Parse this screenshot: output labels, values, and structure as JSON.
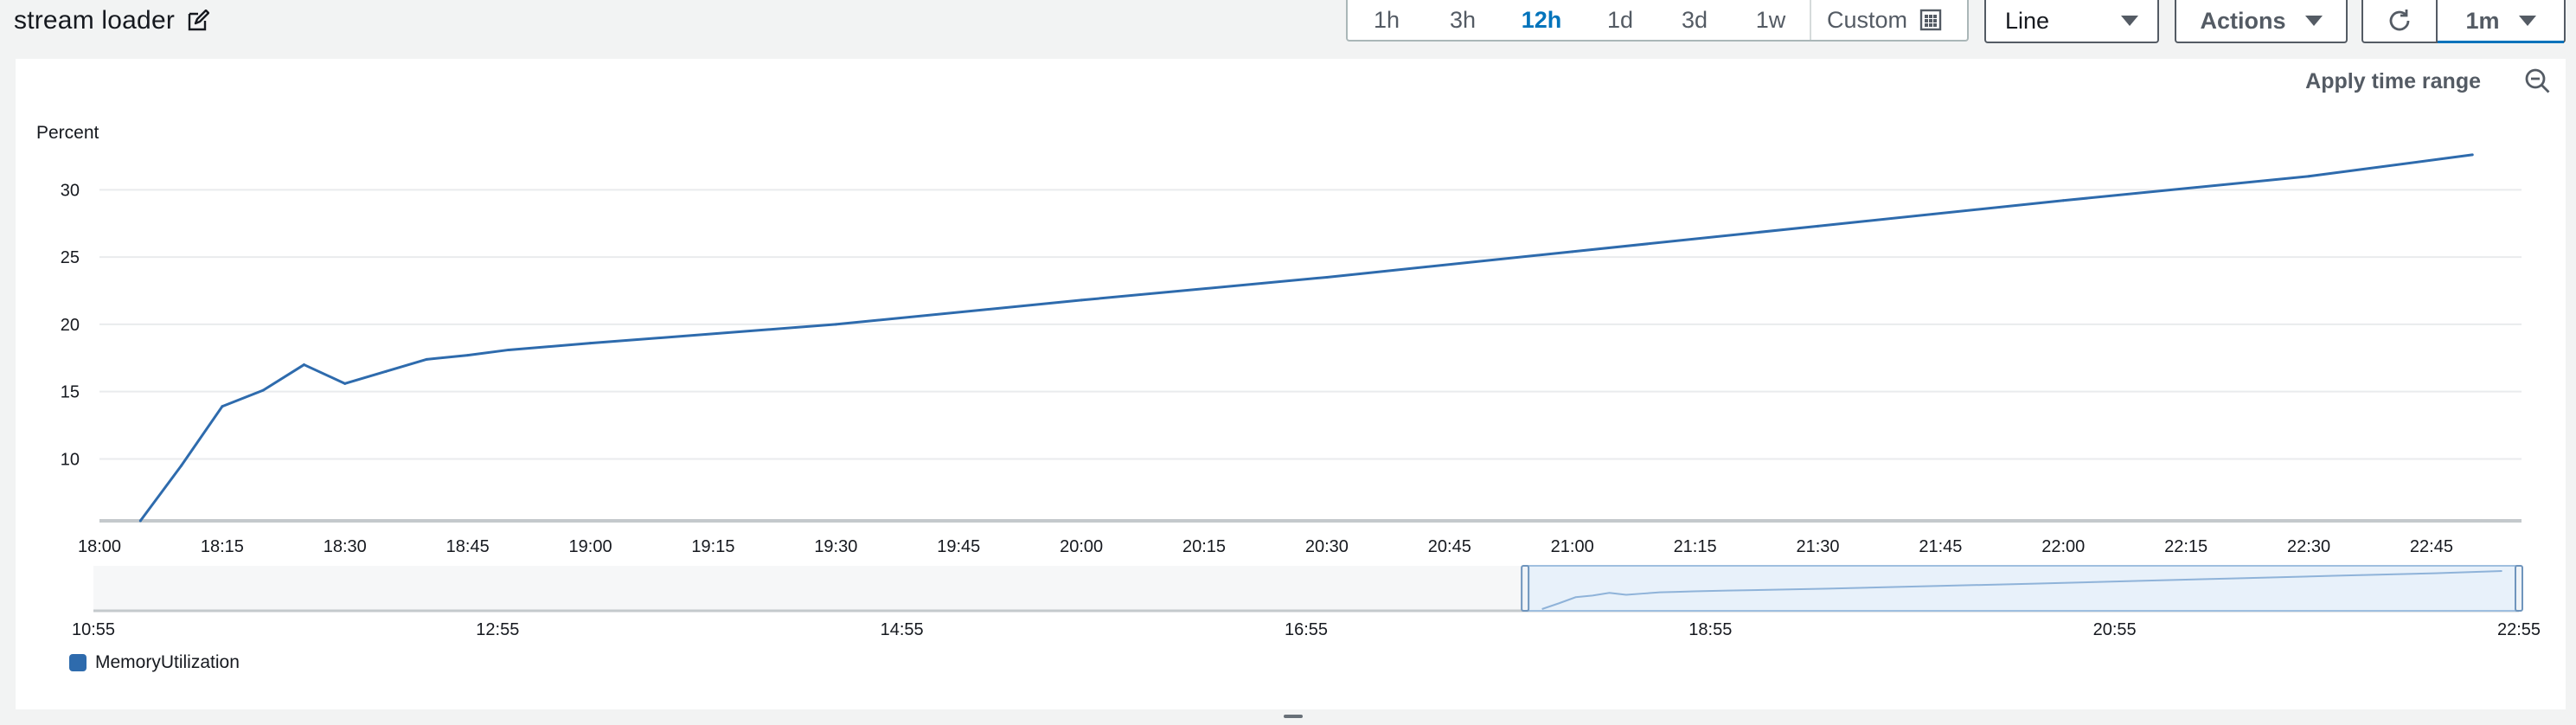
{
  "header": {
    "title": "stream loader",
    "time_ranges": [
      "1h",
      "3h",
      "12h",
      "1d",
      "3d",
      "1w"
    ],
    "active_range": "12h",
    "custom_label": "Custom",
    "chart_type": "Line",
    "actions_label": "Actions",
    "refresh_interval": "1m"
  },
  "panel": {
    "apply_time_range": "Apply time range",
    "legend_label": "MemoryUtilization"
  },
  "colors": {
    "series": "#2e6bad",
    "accent": "#0073bb"
  },
  "chart_data": {
    "type": "line",
    "ylabel": "Percent",
    "y_ticks": [
      10,
      15,
      20,
      25,
      30
    ],
    "x_ticks": [
      "18:00",
      "18:15",
      "18:30",
      "18:45",
      "19:00",
      "19:15",
      "19:30",
      "19:45",
      "20:00",
      "20:15",
      "20:30",
      "20:45",
      "21:00",
      "21:15",
      "21:30",
      "21:45",
      "22:00",
      "22:15",
      "22:30",
      "22:45"
    ],
    "overview_ticks": [
      "10:55",
      "12:55",
      "14:55",
      "16:55",
      "18:55",
      "20:55",
      "22:55"
    ],
    "series": [
      {
        "name": "MemoryUtilization",
        "points": [
          [
            "18:05",
            5.4
          ],
          [
            "18:10",
            9.5
          ],
          [
            "18:15",
            13.9
          ],
          [
            "18:20",
            15.1
          ],
          [
            "18:25",
            17.0
          ],
          [
            "18:30",
            15.6
          ],
          [
            "18:35",
            16.5
          ],
          [
            "18:40",
            17.4
          ],
          [
            "18:45",
            17.7
          ],
          [
            "18:50",
            18.1
          ],
          [
            "19:00",
            18.6
          ],
          [
            "19:30",
            20.0
          ],
          [
            "20:00",
            21.8
          ],
          [
            "20:30",
            23.5
          ],
          [
            "21:00",
            25.4
          ],
          [
            "21:30",
            27.3
          ],
          [
            "22:00",
            29.2
          ],
          [
            "22:30",
            31.0
          ],
          [
            "22:50",
            32.6
          ]
        ]
      }
    ]
  }
}
